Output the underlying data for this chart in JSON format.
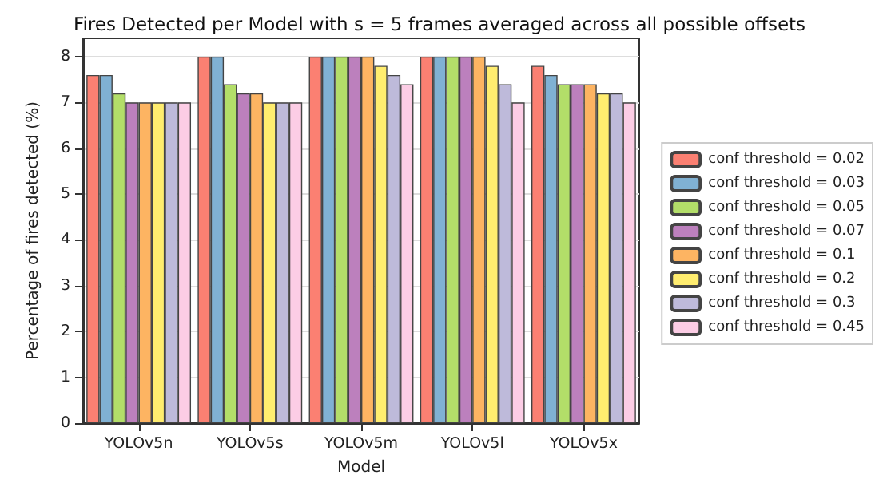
{
  "chart_data": {
    "type": "bar",
    "title": "Fires Detected per Model with s = 5 frames averaged across all possible offsets",
    "xlabel": "Model",
    "ylabel": "Percentage of fires detected (%)",
    "categories": [
      "YOLOv5n",
      "YOLOv5s",
      "YOLOv5m",
      "YOLOv5l",
      "YOLOv5x"
    ],
    "series": [
      {
        "name": "conf threshold = 0.02",
        "color": "#fb8072",
        "values": [
          7.6,
          8,
          8,
          8,
          7.8
        ]
      },
      {
        "name": "conf threshold = 0.03",
        "color": "#80b1d3",
        "values": [
          7.6,
          8,
          8,
          8,
          7.6
        ]
      },
      {
        "name": "conf threshold = 0.05",
        "color": "#b3de69",
        "values": [
          7.2,
          7.4,
          8,
          8,
          7.4
        ]
      },
      {
        "name": "conf threshold = 0.07",
        "color": "#bc80bd",
        "values": [
          7,
          7.2,
          8,
          8,
          7.4
        ]
      },
      {
        "name": "conf threshold = 0.1",
        "color": "#fdb462",
        "values": [
          7,
          7.2,
          8,
          8,
          7.4
        ]
      },
      {
        "name": "conf threshold = 0.2",
        "color": "#ffed6f",
        "values": [
          7,
          7,
          7.8,
          7.8,
          7.2
        ]
      },
      {
        "name": "conf threshold = 0.3",
        "color": "#bebada",
        "values": [
          7,
          7,
          7.6,
          7.4,
          7.2
        ]
      },
      {
        "name": "conf threshold = 0.45",
        "color": "#fccde5",
        "values": [
          7,
          7,
          7.4,
          7,
          7
        ]
      }
    ],
    "ylim": [
      0,
      8.4
    ],
    "yticks": [
      0,
      1,
      2,
      3,
      4,
      5,
      6,
      7,
      8
    ],
    "grid": "y",
    "legend": "right"
  }
}
